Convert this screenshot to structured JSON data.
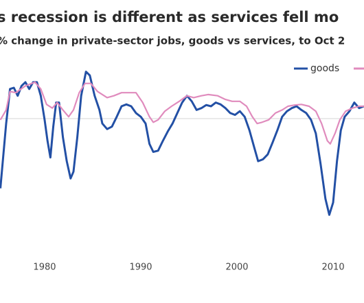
{
  "chart_data": {
    "type": "line",
    "title": "s recession is different as services fell mo",
    "subtitle": "% change in private-sector jobs, goods vs services, to Oct 2",
    "xlim": [
      1975.36,
      2013.21
    ],
    "xticks": [
      1980,
      1990,
      2000,
      2010
    ],
    "ylim": [
      -22,
      12
    ],
    "zeroline": true,
    "series": [
      {
        "name": "goods",
        "color": "#2350a5",
        "x": [
          1975.4,
          1976.0,
          1976.4,
          1976.8,
          1977.2,
          1977.6,
          1978.0,
          1978.4,
          1978.8,
          1979.2,
          1979.6,
          1980.0,
          1980.3,
          1980.6,
          1980.9,
          1981.2,
          1981.5,
          1981.9,
          1982.3,
          1982.7,
          1983.0,
          1983.4,
          1983.8,
          1984.3,
          1984.7,
          1985.2,
          1985.7,
          1986.0,
          1986.5,
          1987.0,
          1987.5,
          1988.0,
          1988.5,
          1989.0,
          1989.5,
          1990.0,
          1990.5,
          1990.9,
          1991.3,
          1991.8,
          1992.3,
          1992.8,
          1993.3,
          1993.8,
          1994.3,
          1994.8,
          1995.3,
          1995.8,
          1996.3,
          1996.8,
          1997.3,
          1997.8,
          1998.3,
          1998.8,
          1999.3,
          1999.8,
          2000.3,
          2000.8,
          2001.3,
          2001.8,
          2002.2,
          2002.7,
          2003.2,
          2003.7,
          2004.2,
          2004.7,
          2005.2,
          2005.7,
          2006.2,
          2006.7,
          2007.2,
          2007.7,
          2008.2,
          2008.7,
          2009.2,
          2009.6,
          2010.0,
          2010.4,
          2010.8,
          2011.2,
          2011.7,
          2012.2,
          2012.7,
          2013.2
        ],
        "values": [
          -11.3,
          -0.8,
          4.8,
          5,
          3.7,
          5.3,
          5.9,
          4.8,
          5.9,
          5.9,
          3.7,
          -0.2,
          -3.6,
          -6.3,
          -1.3,
          2.6,
          2.6,
          -3,
          -6.9,
          -9.7,
          -8.6,
          -3,
          3.7,
          7.6,
          7,
          3.7,
          1.4,
          -0.8,
          -1.7,
          -1.3,
          0.3,
          2,
          2.3,
          2,
          0.9,
          0.3,
          -0.8,
          -4.1,
          -5.4,
          -5.2,
          -3.6,
          -2.1,
          -0.8,
          0.9,
          2.6,
          3.7,
          2.8,
          1.4,
          1.7,
          2.2,
          2,
          2.6,
          2.3,
          1.7,
          0.9,
          0.6,
          1.2,
          0.3,
          -1.9,
          -4.7,
          -6.9,
          -6.6,
          -5.8,
          -3.9,
          -1.9,
          0.3,
          1.2,
          1.7,
          2,
          1.4,
          0.9,
          -0.2,
          -2.4,
          -7.4,
          -13,
          -15.6,
          -13.6,
          -6.9,
          -1.9,
          0.3,
          1.2,
          2.6,
          1.7,
          2
        ]
      },
      {
        "color": "#e08bbd",
        "x": [
          1975.4,
          1976.0,
          1976.4,
          1977.0,
          1978.0,
          1979.0,
          1979.6,
          1980.2,
          1980.8,
          1981.3,
          1981.9,
          1982.5,
          1983.0,
          1983.6,
          1984.2,
          1984.8,
          1985.5,
          1986.0,
          1986.5,
          1987.2,
          1988.0,
          1988.8,
          1989.5,
          1990.2,
          1990.9,
          1991.3,
          1991.8,
          1992.5,
          1993.2,
          1994.0,
          1994.8,
          1995.5,
          1996.3,
          1997.0,
          1998.0,
          1998.8,
          1999.5,
          2000.3,
          2001.0,
          2001.6,
          2002.1,
          2002.6,
          2003.3,
          2004.0,
          2004.7,
          2005.3,
          2006.0,
          2006.7,
          2007.5,
          2008.2,
          2008.8,
          2009.4,
          2009.7,
          2010.2,
          2010.7,
          2011.3,
          2012.0,
          2012.7,
          2013.2
        ],
        "values": [
          -0.2,
          1.4,
          4.4,
          4.2,
          5.3,
          5.9,
          4.8,
          2.3,
          1.7,
          2.6,
          1.4,
          0.3,
          1.4,
          4.2,
          5.7,
          5.7,
          4.4,
          3.9,
          3.4,
          3.7,
          4.2,
          4.2,
          4.2,
          2.6,
          0.3,
          -0.6,
          -0.2,
          1.2,
          2,
          2.8,
          3.7,
          3.4,
          3.7,
          3.9,
          3.7,
          3.1,
          2.8,
          2.8,
          2,
          0.3,
          -0.8,
          -0.6,
          -0.2,
          0.9,
          1.4,
          2,
          2.2,
          2.3,
          2,
          1.2,
          -0.8,
          -3.6,
          -4.1,
          -2.4,
          -0.2,
          1.2,
          1.7,
          2,
          2
        ]
      }
    ]
  }
}
